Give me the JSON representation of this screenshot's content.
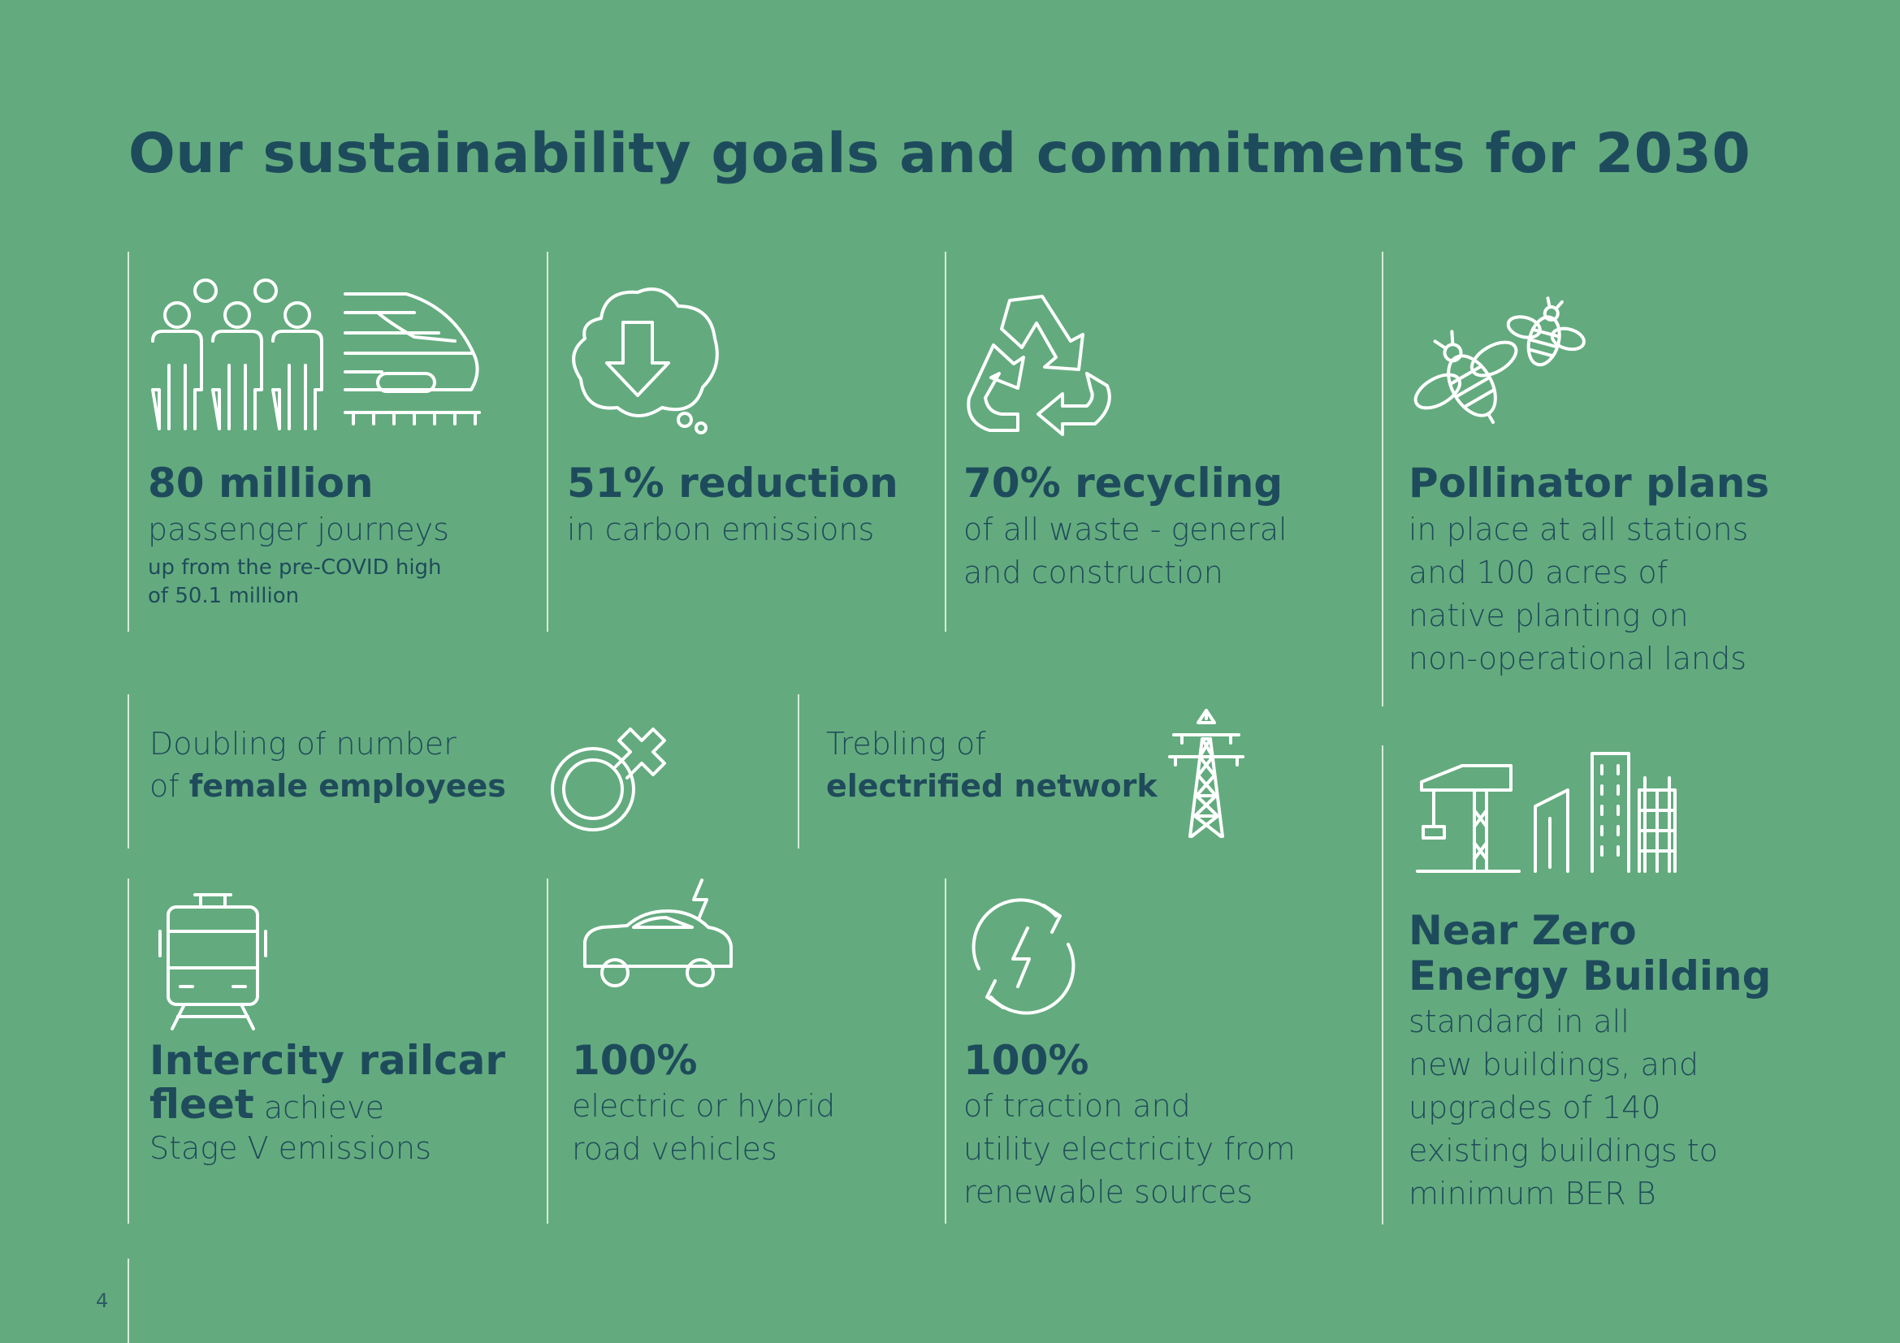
{
  "title": "Our sustainability goals and commitments for 2030",
  "page_number": "4",
  "colors": {
    "background": "#63ab7e",
    "heading": "#1e4b5c",
    "icon": "#ffffff",
    "divider": "#d6ebdc"
  },
  "goals": {
    "passengers": {
      "icon": "people-and-train-icon",
      "headline": "80 million",
      "line1": "passenger journeys",
      "note1": "up from the pre-COVID high",
      "note2": "of 50.1 million"
    },
    "carbon": {
      "icon": "carbon-cloud-down-icon",
      "headline": "51% reduction",
      "line1": "in carbon emissions"
    },
    "recycling": {
      "icon": "recycle-icon",
      "headline": "70% recycling",
      "line1": "of all waste - general",
      "line2": "and construction"
    },
    "pollinator": {
      "icon": "bees-icon",
      "headline": "Pollinator plans",
      "line1": "in place at all stations",
      "line2": "and 100 acres of",
      "line3": "native planting on",
      "line4": "non-operational lands"
    },
    "female": {
      "icon": "female-symbol-icon",
      "line1": "Doubling of number",
      "line2_prefix": "of ",
      "line2_bold": "female employees"
    },
    "electrified": {
      "icon": "pylon-icon",
      "line1": "Trebling of",
      "line2_bold": "electrified network"
    },
    "railcar": {
      "icon": "railcar-icon",
      "headline1": "Intercity railcar",
      "headline2_bold": "fleet",
      "headline2_rest": " achieve",
      "line1": "Stage V emissions"
    },
    "vehicles": {
      "icon": "electric-car-icon",
      "headline": "100%",
      "line1": "electric or hybrid",
      "line2": "road vehicles"
    },
    "renewable": {
      "icon": "renewable-energy-icon",
      "headline": "100%",
      "line1": "of traction and",
      "line2": "utility electricity from",
      "line3": "renewable sources"
    },
    "building": {
      "icon": "construction-buildings-icon",
      "headline1": "Near Zero",
      "headline2": "Energy Building",
      "line1": "standard in all",
      "line2": "new buildings, and",
      "line3": "upgrades of 140",
      "line4": "existing buildings to",
      "line5": "minimum BER B"
    }
  }
}
